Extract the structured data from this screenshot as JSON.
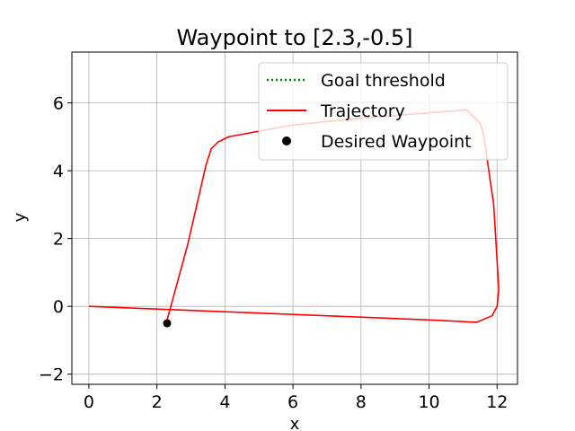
{
  "chart_data": {
    "type": "line",
    "title": "Waypoint to [2.3,-0.5]",
    "xlabel": "x",
    "ylabel": "y",
    "xlim": [
      -0.5,
      12.6
    ],
    "ylim": [
      -2.3,
      7.5
    ],
    "xticks": [
      0,
      2,
      4,
      6,
      8,
      10,
      12
    ],
    "yticks": [
      -2,
      0,
      2,
      4,
      6
    ],
    "xtick_labels": [
      "0",
      "2",
      "4",
      "6",
      "8",
      "10",
      "12"
    ],
    "ytick_labels": [
      "−2",
      "0",
      "2",
      "4",
      "6"
    ],
    "grid": true,
    "legend": "upper right",
    "colors": {
      "threshold": "#008000",
      "trajectory": "#ff0000",
      "waypoint": "#000000"
    },
    "series": [
      {
        "name": "Goal threshold",
        "kind": "dotted-line",
        "x": [],
        "y": []
      },
      {
        "name": "Trajectory",
        "kind": "line",
        "x": [
          0,
          2,
          4,
          6,
          8,
          10,
          11.4,
          11.85,
          12.0,
          12.05,
          11.9,
          11.6,
          11.5,
          11.1,
          10.5,
          8,
          6,
          4.1,
          3.8,
          3.6,
          3.45,
          2.9,
          2.3
        ],
        "y": [
          0,
          -0.08,
          -0.16,
          -0.24,
          -0.32,
          -0.4,
          -0.47,
          -0.28,
          0.0,
          0.5,
          3.0,
          5.1,
          5.4,
          5.8,
          5.75,
          5.55,
          5.35,
          5.0,
          4.85,
          4.65,
          4.2,
          1.8,
          -0.4
        ]
      },
      {
        "name": "Desired Waypoint",
        "kind": "marker",
        "x": [
          2.3
        ],
        "y": [
          -0.5
        ]
      }
    ]
  }
}
